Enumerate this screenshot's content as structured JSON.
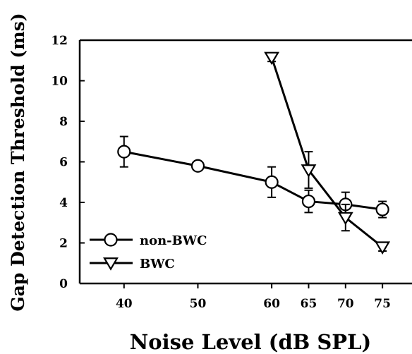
{
  "chart_data": {
    "type": "line",
    "xlabel": "Noise Level (dB SPL)",
    "ylabel": "Gap Detection Threshold (ms)",
    "xlim": [
      34,
      79
    ],
    "ylim": [
      0,
      12
    ],
    "x_ticks": [
      40,
      50,
      60,
      65,
      70,
      75
    ],
    "y_ticks": [
      0,
      2,
      4,
      6,
      8,
      10,
      12
    ],
    "grid": false,
    "legend_position": "bottom-left",
    "series": [
      {
        "name": "non-BWC",
        "marker": "circle",
        "color": "#000000",
        "x": [
          40,
          50,
          60,
          65,
          70,
          75
        ],
        "y": [
          6.5,
          5.8,
          5.0,
          4.05,
          3.9,
          3.65
        ],
        "err": [
          0.75,
          0.15,
          0.75,
          0.55,
          0.6,
          0.4
        ]
      },
      {
        "name": "BWC",
        "marker": "triangle-down",
        "color": "#000000",
        "x": [
          60,
          65,
          70,
          75
        ],
        "y": [
          11.15,
          5.6,
          3.25,
          1.8
        ],
        "err": [
          0.2,
          0.9,
          0.65,
          0.2
        ]
      }
    ]
  }
}
